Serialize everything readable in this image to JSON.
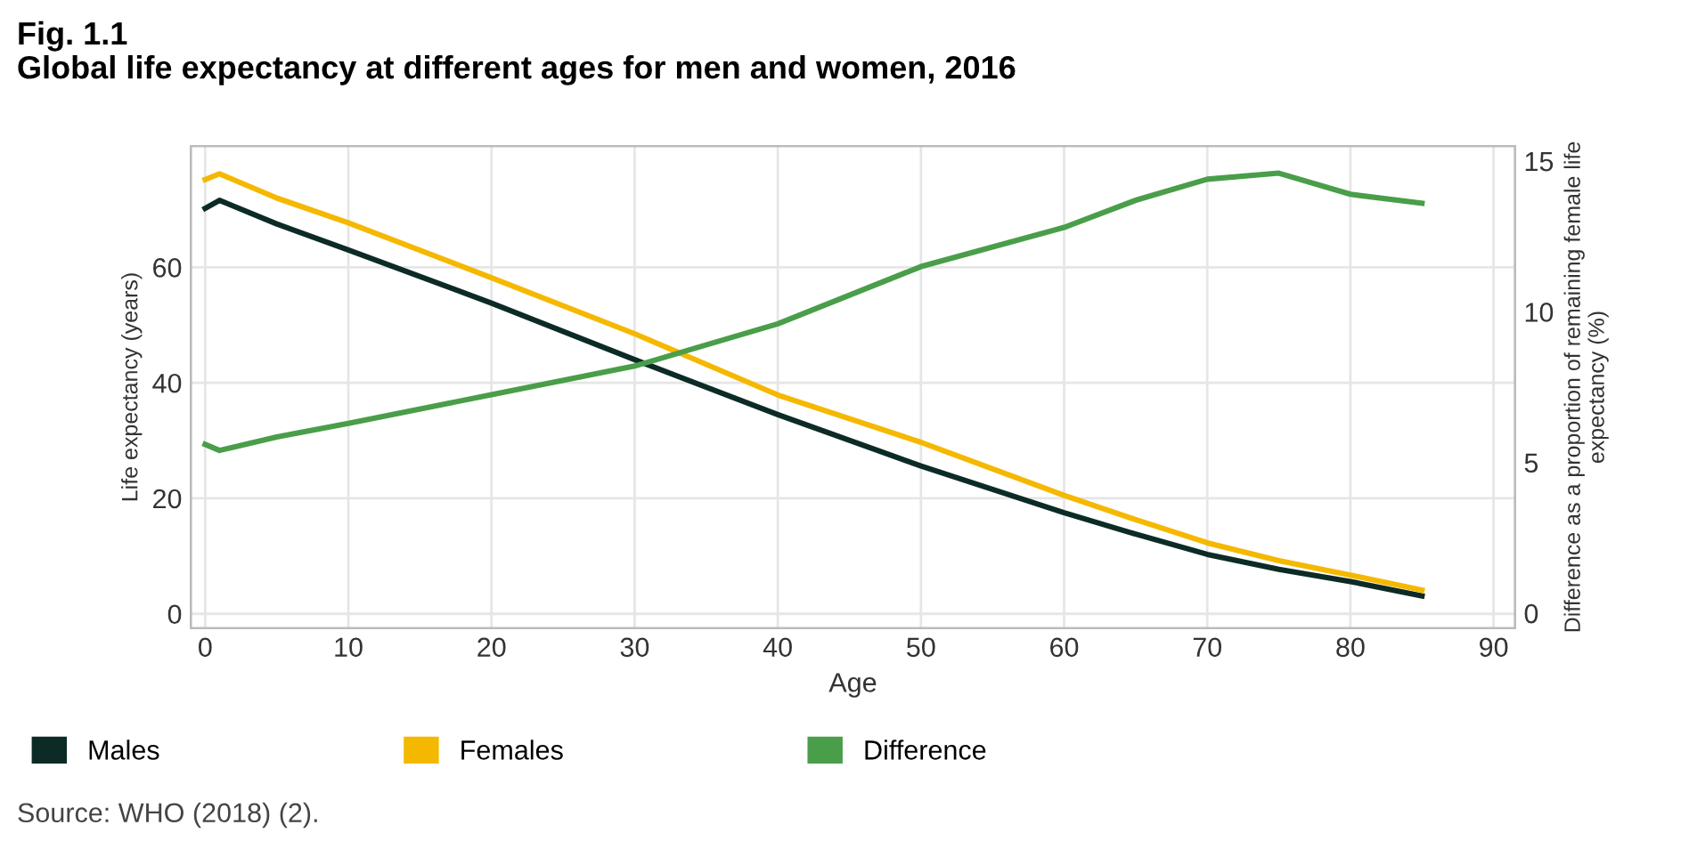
{
  "chart_data": {
    "type": "line",
    "title": "Fig. 1.1",
    "subtitle": "Global life expectancy at different ages for men and women, 2016",
    "xlabel": "Age",
    "ylabel": "Life expectancy (years)",
    "y2label": "Difference as a proportion of remaining female life\nexpectancy (%)",
    "x": [
      0,
      1,
      5,
      10,
      20,
      30,
      40,
      50,
      60,
      65,
      70,
      75,
      80,
      85
    ],
    "series": [
      {
        "name": "Males",
        "color": "#0d2b26",
        "values": [
          70.2,
          71.6,
          67.5,
          63,
          53.8,
          44,
          34.5,
          25.6,
          17.5,
          13.8,
          10.3,
          7.7,
          5.6,
          3.1
        ]
      },
      {
        "name": "Females",
        "color": "#f5b800",
        "values": [
          75.2,
          76.2,
          72,
          67.7,
          58.2,
          48.5,
          37.9,
          29.7,
          20.5,
          16.3,
          12.3,
          9.2,
          6.7,
          4.1
        ]
      },
      {
        "name": "Difference",
        "color": "#4a9e4a",
        "axis": "y2",
        "values": [
          5.6,
          5.4,
          5.85,
          6.3,
          7.25,
          8.2,
          9.6,
          11.5,
          12.8,
          13.7,
          14.4,
          14.6,
          13.9,
          13.6
        ]
      }
    ],
    "xlim": [
      -1,
      91.5
    ],
    "xticks": [
      0,
      10,
      20,
      30,
      40,
      50,
      60,
      70,
      80,
      90
    ],
    "ylim": [
      -2.5,
      81
    ],
    "yticks": [
      0,
      20,
      40,
      60
    ],
    "y2lim": [
      -0.5,
      15.5
    ],
    "y2ticks": [
      0,
      5,
      10,
      15
    ],
    "grid": true,
    "legend": "bottom",
    "annotations": [
      "Source: WHO (2018) (2)."
    ]
  }
}
